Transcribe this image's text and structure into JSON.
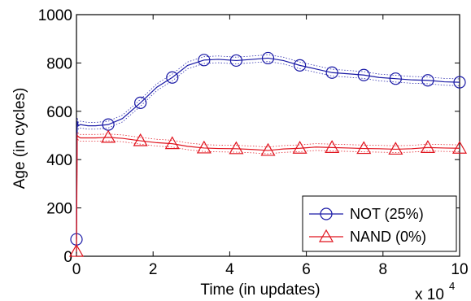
{
  "chart_data": {
    "type": "line",
    "xlabel": "Time (in updates)",
    "ylabel": "Age (in cycles)",
    "x_multiplier": "x 10",
    "x_multiplier_exp": "4",
    "xlim": [
      0,
      10
    ],
    "ylim": [
      0,
      1000
    ],
    "xticks": [
      "0",
      "2",
      "4",
      "6",
      "8",
      "10"
    ],
    "yticks": [
      "0",
      "200",
      "400",
      "600",
      "800",
      "1000"
    ],
    "grid": false,
    "legend_position": "bottom-right",
    "series": [
      {
        "name": "NOT (25%)",
        "color": "#1a1aa6",
        "marker": "circle",
        "x": [
          0,
          0.02,
          0.05,
          0.1,
          0.3,
          0.5,
          0.83,
          1.2,
          1.67,
          2.1,
          2.5,
          2.9,
          3.33,
          3.7,
          4.17,
          4.6,
          5.0,
          5.4,
          5.83,
          6.25,
          6.67,
          7.1,
          7.5,
          7.9,
          8.33,
          8.75,
          9.17,
          9.6,
          10.0
        ],
        "y": [
          70,
          560,
          540,
          545,
          540,
          540,
          545,
          570,
          635,
          700,
          740,
          790,
          812,
          815,
          810,
          815,
          820,
          810,
          790,
          775,
          760,
          755,
          750,
          740,
          735,
          730,
          728,
          722,
          720
        ],
        "markers_x": [
          0,
          0.83,
          1.67,
          2.5,
          3.33,
          4.17,
          5.0,
          5.83,
          6.67,
          7.5,
          8.33,
          9.17,
          10.0
        ],
        "markers_y": [
          70,
          545,
          635,
          740,
          812,
          810,
          820,
          790,
          760,
          750,
          735,
          728,
          720
        ]
      },
      {
        "name": "NAND (0%)",
        "color": "#e0141e",
        "marker": "triangle",
        "x": [
          0,
          0.02,
          0.05,
          0.1,
          0.3,
          0.5,
          0.83,
          1.2,
          1.67,
          2.1,
          2.5,
          2.9,
          3.33,
          3.7,
          4.17,
          4.6,
          5.0,
          5.4,
          5.83,
          6.25,
          6.67,
          7.1,
          7.5,
          7.9,
          8.33,
          8.75,
          9.17,
          9.6,
          10.0
        ],
        "y": [
          20,
          500,
          495,
          490,
          490,
          490,
          492,
          488,
          478,
          470,
          466,
          455,
          448,
          446,
          445,
          442,
          438,
          444,
          447,
          452,
          450,
          448,
          446,
          445,
          443,
          445,
          450,
          448,
          447
        ],
        "markers_x": [
          0,
          0.83,
          1.67,
          2.5,
          3.33,
          4.17,
          5.0,
          5.83,
          6.67,
          7.5,
          8.33,
          9.17,
          10.0
        ],
        "markers_y": [
          20,
          492,
          478,
          466,
          448,
          445,
          438,
          447,
          450,
          446,
          443,
          450,
          447
        ]
      }
    ]
  }
}
